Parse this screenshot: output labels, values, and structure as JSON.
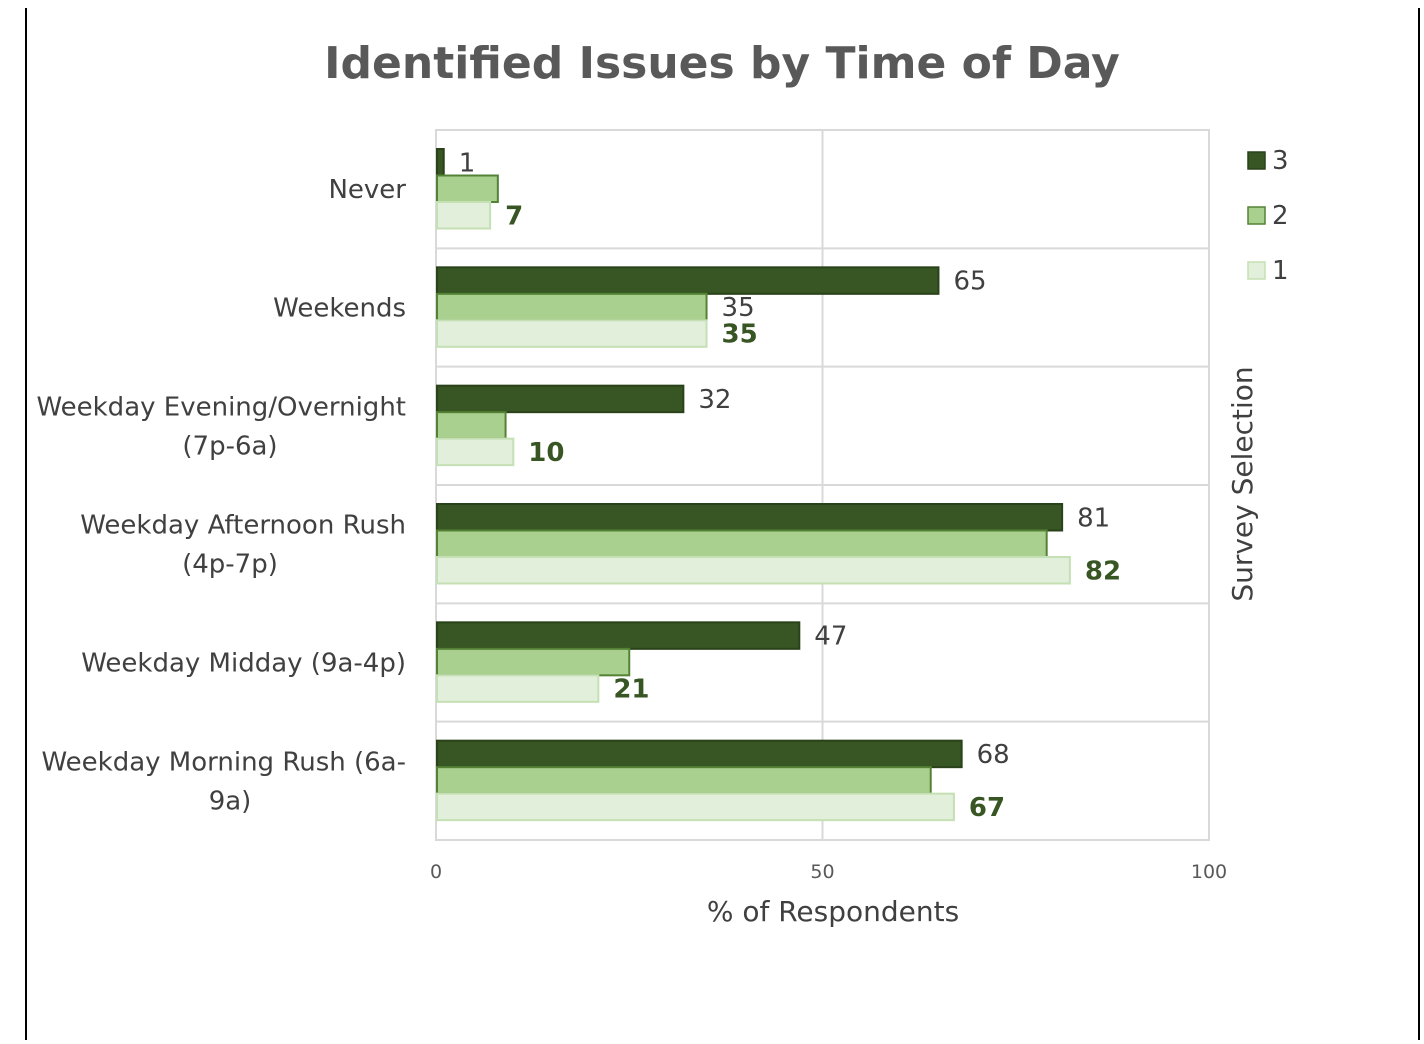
{
  "chart_data": {
    "type": "bar",
    "orientation": "horizontal",
    "title": "Identified Issues by Time of Day",
    "xlabel": "% of Respondents",
    "ylabel": "",
    "legend_title": "Survey Selection",
    "legend_position": "right",
    "xlim": [
      0,
      100
    ],
    "xticks": [
      "0",
      "50",
      "100"
    ],
    "grid": true,
    "categories": [
      "Never",
      "Weekends",
      "Weekday Evening/Overnight (7p-6a)",
      "Weekday Afternoon Rush (4p-7p)",
      "Weekday Midday (9a-4p)",
      "Weekday Morning Rush (6a-9a)"
    ],
    "category_label_lines": [
      [
        "Never"
      ],
      [
        "Weekends"
      ],
      [
        "Weekday Evening/Overnight",
        "(7p-6a)"
      ],
      [
        "Weekday Afternoon Rush",
        "(4p-7p)"
      ],
      [
        "Weekday Midday (9a-4p)"
      ],
      [
        "Weekday Morning Rush (6a-",
        "9a)"
      ]
    ],
    "series": [
      {
        "name": "3",
        "color": "#375623",
        "values": [
          1,
          65,
          32,
          81,
          47,
          68
        ],
        "labels_shown": [
          true,
          true,
          true,
          true,
          true,
          true
        ]
      },
      {
        "name": "2",
        "color": "#a9d08e",
        "values": [
          8,
          35,
          9,
          79,
          25,
          64
        ],
        "labels_shown": [
          false,
          true,
          false,
          false,
          false,
          false
        ]
      },
      {
        "name": "1",
        "color": "#e2efda",
        "values": [
          7,
          35,
          10,
          82,
          21,
          67
        ],
        "labels_shown": [
          true,
          true,
          true,
          true,
          true,
          true
        ]
      }
    ]
  }
}
